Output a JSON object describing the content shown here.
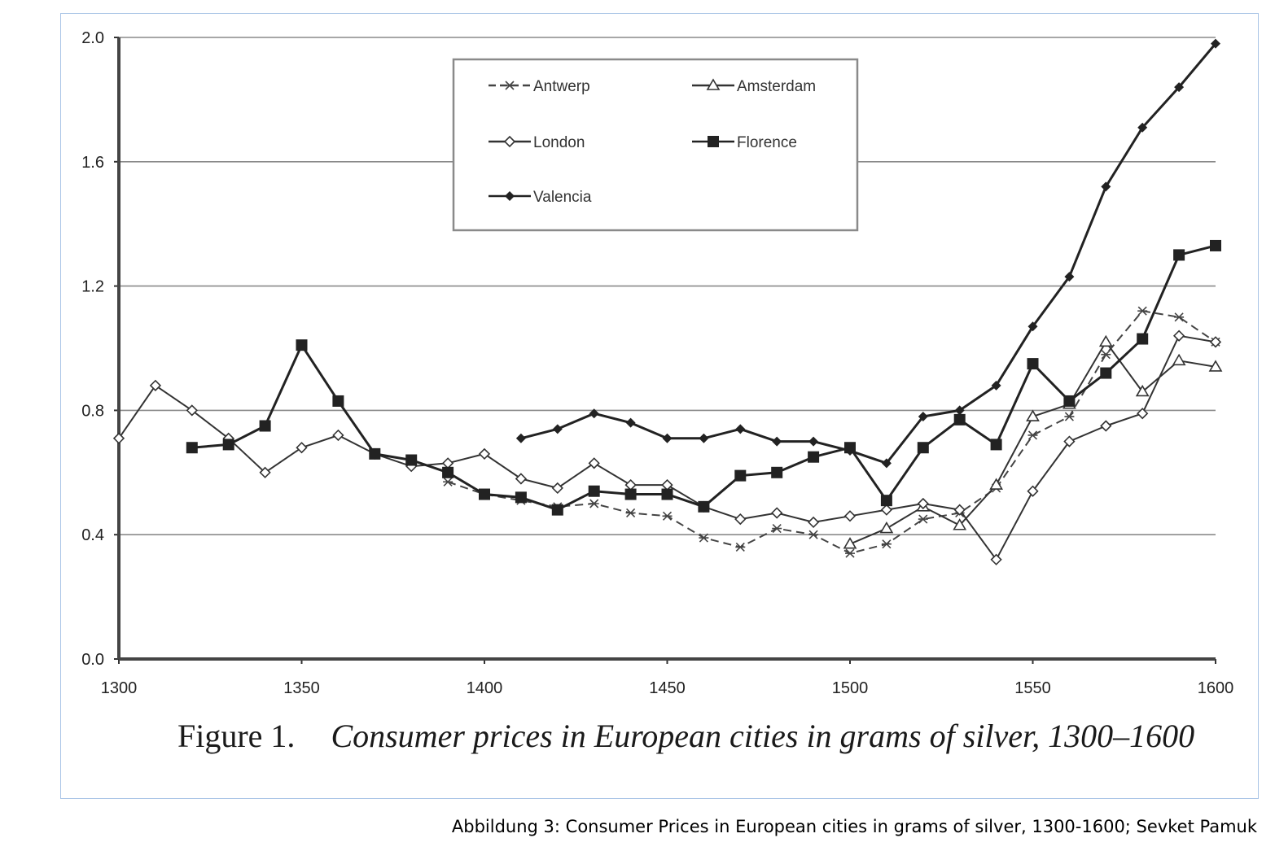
{
  "chart_data": {
    "type": "line",
    "y_ticks": [
      "0.0",
      "0.4",
      "0.8",
      "1.2",
      "1.6",
      "2.0"
    ],
    "x_ticks": [
      "1300",
      "1350",
      "1400",
      "1450",
      "1500",
      "1550",
      "1600"
    ],
    "xlim": [
      1300,
      1600
    ],
    "ylim": [
      0,
      2.0
    ],
    "grid": "horizontal",
    "legend_placement": "top-center",
    "series": [
      {
        "name": "Antwerp",
        "marker": "asterisk",
        "dash": true,
        "color": "#444444",
        "x": [
          1390,
          1400,
          1410,
          1420,
          1430,
          1440,
          1450,
          1460,
          1470,
          1480,
          1490,
          1500,
          1510,
          1520,
          1530,
          1540,
          1550,
          1560,
          1570,
          1580,
          1590,
          1600
        ],
        "y": [
          0.57,
          0.53,
          0.51,
          0.49,
          0.5,
          0.47,
          0.46,
          0.39,
          0.36,
          0.42,
          0.4,
          0.34,
          0.37,
          0.45,
          0.47,
          0.55,
          0.72,
          0.78,
          0.98,
          1.12,
          1.1,
          1.02
        ]
      },
      {
        "name": "Amsterdam",
        "marker": "triangle",
        "dash": false,
        "color": "#333333",
        "x": [
          1500,
          1510,
          1520,
          1530,
          1540,
          1550,
          1560,
          1570,
          1580,
          1590,
          1600
        ],
        "y": [
          0.37,
          0.42,
          0.49,
          0.43,
          0.56,
          0.78,
          0.82,
          1.02,
          0.86,
          0.96,
          0.94
        ]
      },
      {
        "name": "London",
        "marker": "diamond-open",
        "dash": false,
        "color": "#333333",
        "x": [
          1300,
          1310,
          1320,
          1330,
          1340,
          1350,
          1360,
          1370,
          1380,
          1390,
          1400,
          1410,
          1420,
          1430,
          1440,
          1450,
          1460,
          1470,
          1480,
          1490,
          1500,
          1510,
          1520,
          1530,
          1540,
          1550,
          1560,
          1570,
          1580,
          1590,
          1600
        ],
        "y": [
          0.71,
          0.88,
          0.8,
          0.71,
          0.6,
          0.68,
          0.72,
          0.66,
          0.62,
          0.63,
          0.66,
          0.58,
          0.55,
          0.63,
          0.56,
          0.56,
          0.49,
          0.45,
          0.47,
          0.44,
          0.46,
          0.48,
          0.5,
          0.48,
          0.32,
          0.54,
          0.7,
          0.75,
          0.79,
          1.04,
          1.02
        ]
      },
      {
        "name": "Florence",
        "marker": "square",
        "dash": false,
        "color": "#222222",
        "x": [
          1320,
          1330,
          1340,
          1350,
          1360,
          1370,
          1380,
          1390,
          1400,
          1410,
          1420,
          1430,
          1440,
          1450,
          1460,
          1470,
          1480,
          1490,
          1500,
          1510,
          1520,
          1530,
          1540,
          1550,
          1560,
          1570,
          1580,
          1590,
          1600
        ],
        "y": [
          0.68,
          0.69,
          0.75,
          1.01,
          0.83,
          0.66,
          0.64,
          0.6,
          0.53,
          0.52,
          0.48,
          0.54,
          0.53,
          0.53,
          0.49,
          0.59,
          0.6,
          0.65,
          0.68,
          0.51,
          0.68,
          0.77,
          0.69,
          0.95,
          0.83,
          0.92,
          1.03,
          1.3,
          1.33
        ]
      },
      {
        "name": "Valencia",
        "marker": "diamond",
        "dash": false,
        "color": "#222222",
        "x": [
          1410,
          1420,
          1430,
          1440,
          1450,
          1460,
          1470,
          1480,
          1490,
          1500,
          1510,
          1520,
          1530,
          1540,
          1550,
          1560,
          1570,
          1580,
          1590,
          1600
        ],
        "y": [
          0.71,
          0.74,
          0.79,
          0.76,
          0.71,
          0.71,
          0.74,
          0.7,
          0.7,
          0.67,
          0.63,
          0.78,
          0.8,
          0.88,
          1.07,
          1.23,
          1.52,
          1.71,
          1.84,
          1.98
        ]
      }
    ]
  },
  "figure_caption": {
    "label": "Figure 1.",
    "text": "Consumer prices in European cities in grams of silver, 1300–1600"
  },
  "footer_caption": "Abbildung 3: Consumer Prices in European cities in grams of silver, 1300-1600; Sevket Pamuk"
}
